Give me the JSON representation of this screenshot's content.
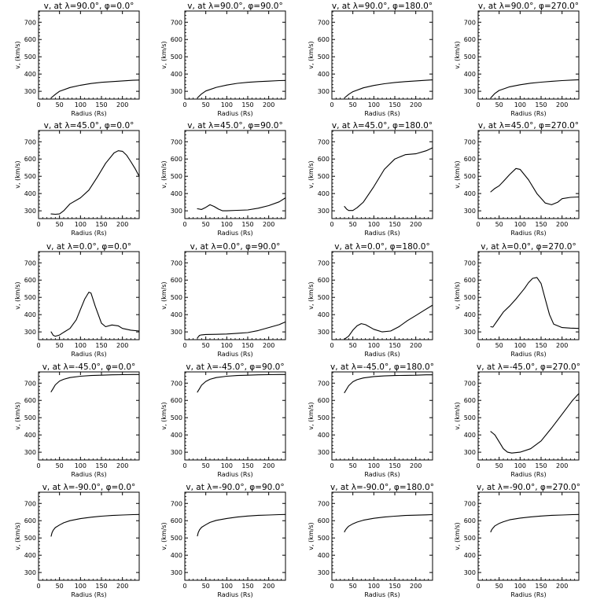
{
  "chart_data": [
    {
      "type": "line",
      "title": "v, at λ=90.0°, φ=0.0°",
      "xlabel": "Radius (Rs)",
      "ylabel": "v, (km/s)",
      "xlim": [
        0,
        240
      ],
      "ylim": [
        255,
        765
      ],
      "xticks": [
        0,
        50,
        100,
        150,
        200
      ],
      "yticks": [
        300,
        400,
        500,
        600,
        700
      ],
      "series": [
        {
          "x": [
            30,
            40,
            50,
            75,
            100,
            125,
            150,
            175,
            200,
            225,
            240
          ],
          "y": [
            262,
            282,
            300,
            322,
            335,
            345,
            352,
            356,
            360,
            364,
            365
          ]
        }
      ]
    },
    {
      "type": "line",
      "title": "v, at λ=90.0°, φ=90.0°",
      "xlabel": "Radius (Rs)",
      "ylabel": "v, (km/s)",
      "xlim": [
        0,
        240
      ],
      "ylim": [
        255,
        765
      ],
      "xticks": [
        0,
        50,
        100,
        150,
        200
      ],
      "yticks": [
        300,
        400,
        500,
        600,
        700
      ],
      "series": [
        {
          "x": [
            30,
            40,
            50,
            75,
            100,
            125,
            150,
            175,
            200,
            225,
            240
          ],
          "y": [
            262,
            285,
            302,
            323,
            336,
            346,
            352,
            356,
            359,
            362,
            363
          ]
        }
      ]
    },
    {
      "type": "line",
      "title": "v, at λ=90.0°, φ=180.0°",
      "xlabel": "Radius (Rs)",
      "ylabel": "v, (km/s)",
      "xlim": [
        0,
        240
      ],
      "ylim": [
        255,
        765
      ],
      "xticks": [
        0,
        50,
        100,
        150,
        200
      ],
      "yticks": [
        300,
        400,
        500,
        600,
        700
      ],
      "series": [
        {
          "x": [
            30,
            40,
            50,
            75,
            100,
            125,
            150,
            175,
            200,
            225,
            240
          ],
          "y": [
            262,
            282,
            298,
            320,
            334,
            344,
            351,
            356,
            360,
            364,
            366
          ]
        }
      ]
    },
    {
      "type": "line",
      "title": "v, at λ=90.0°, φ=270.0°",
      "xlabel": "Radius (Rs)",
      "ylabel": "v, (km/s)",
      "xlim": [
        0,
        240
      ],
      "ylim": [
        255,
        765
      ],
      "xticks": [
        0,
        50,
        100,
        150,
        200
      ],
      "yticks": [
        300,
        400,
        500,
        600,
        700
      ],
      "series": [
        {
          "x": [
            30,
            40,
            50,
            75,
            100,
            125,
            150,
            175,
            200,
            225,
            240
          ],
          "y": [
            262,
            288,
            305,
            326,
            338,
            347,
            353,
            358,
            362,
            365,
            367
          ]
        }
      ]
    },
    {
      "type": "line",
      "title": "v, at λ=45.0°, φ=0.0°",
      "xlabel": "Radius (Rs)",
      "ylabel": "v, (km/s)",
      "xlim": [
        0,
        240
      ],
      "ylim": [
        255,
        765
      ],
      "xticks": [
        0,
        50,
        100,
        150,
        200
      ],
      "yticks": [
        300,
        400,
        500,
        600,
        700
      ],
      "series": [
        {
          "x": [
            30,
            40,
            50,
            60,
            75,
            100,
            120,
            140,
            160,
            180,
            190,
            200,
            210,
            220,
            230,
            240
          ],
          "y": [
            282,
            280,
            282,
            300,
            340,
            375,
            420,
            495,
            575,
            635,
            648,
            645,
            622,
            585,
            545,
            500
          ]
        }
      ]
    },
    {
      "type": "line",
      "title": "v, at λ=45.0°, φ=90.0°",
      "xlabel": "Radius (Rs)",
      "ylabel": "v, (km/s)",
      "xlim": [
        0,
        240
      ],
      "ylim": [
        255,
        765
      ],
      "xticks": [
        0,
        50,
        100,
        150,
        200
      ],
      "yticks": [
        300,
        400,
        500,
        600,
        700
      ],
      "series": [
        {
          "x": [
            30,
            40,
            50,
            60,
            70,
            80,
            90,
            100,
            125,
            150,
            175,
            200,
            225,
            240
          ],
          "y": [
            312,
            308,
            320,
            335,
            325,
            310,
            300,
            300,
            303,
            305,
            315,
            330,
            352,
            375
          ]
        }
      ]
    },
    {
      "type": "line",
      "title": "v, at λ=45.0°, φ=180.0°",
      "xlabel": "Radius (Rs)",
      "ylabel": "v, (km/s)",
      "xlim": [
        0,
        240
      ],
      "ylim": [
        255,
        765
      ],
      "xticks": [
        0,
        50,
        100,
        150,
        200
      ],
      "yticks": [
        300,
        400,
        500,
        600,
        700
      ],
      "series": [
        {
          "x": [
            30,
            35,
            40,
            50,
            60,
            75,
            100,
            125,
            150,
            175,
            200,
            225,
            240
          ],
          "y": [
            325,
            310,
            302,
            302,
            318,
            350,
            440,
            540,
            600,
            625,
            630,
            648,
            665
          ]
        }
      ]
    },
    {
      "type": "line",
      "title": "v, at λ=45.0°, φ=270.0°",
      "xlabel": "Radius (Rs)",
      "ylabel": "v, (km/s)",
      "xlim": [
        0,
        240
      ],
      "ylim": [
        255,
        765
      ],
      "xticks": [
        0,
        50,
        100,
        150,
        200
      ],
      "yticks": [
        300,
        400,
        500,
        600,
        700
      ],
      "series": [
        {
          "x": [
            30,
            40,
            50,
            60,
            75,
            90,
            100,
            120,
            140,
            160,
            175,
            190,
            200,
            220,
            240
          ],
          "y": [
            410,
            430,
            445,
            470,
            510,
            545,
            540,
            480,
            400,
            345,
            335,
            350,
            370,
            378,
            380
          ]
        }
      ]
    },
    {
      "type": "line",
      "title": "v, at λ=0.0°, φ=0.0°",
      "xlabel": "Radius (Rs)",
      "ylabel": "v, (km/s)",
      "xlim": [
        0,
        240
      ],
      "ylim": [
        255,
        765
      ],
      "xticks": [
        0,
        50,
        100,
        150,
        200
      ],
      "yticks": [
        300,
        400,
        500,
        600,
        700
      ],
      "series": [
        {
          "x": [
            30,
            35,
            40,
            50,
            60,
            75,
            90,
            100,
            110,
            120,
            125,
            135,
            150,
            160,
            175,
            190,
            200,
            220,
            240
          ],
          "y": [
            300,
            280,
            275,
            282,
            298,
            320,
            370,
            430,
            490,
            530,
            525,
            450,
            350,
            330,
            340,
            335,
            320,
            310,
            305
          ]
        }
      ]
    },
    {
      "type": "line",
      "title": "v, at λ=0.0°, φ=90.0°",
      "xlabel": "Radius (Rs)",
      "ylabel": "v, (km/s)",
      "xlim": [
        0,
        240
      ],
      "ylim": [
        255,
        765
      ],
      "xticks": [
        0,
        50,
        100,
        150,
        200
      ],
      "yticks": [
        300,
        400,
        500,
        600,
        700
      ],
      "series": [
        {
          "x": [
            30,
            35,
            40,
            50,
            75,
            100,
            125,
            150,
            175,
            200,
            225,
            240
          ],
          "y": [
            265,
            280,
            283,
            285,
            286,
            288,
            292,
            296,
            308,
            325,
            342,
            358
          ]
        }
      ]
    },
    {
      "type": "line",
      "title": "v, at λ=0.0°, φ=180.0°",
      "xlabel": "Radius (Rs)",
      "ylabel": "v, (km/s)",
      "xlim": [
        0,
        240
      ],
      "ylim": [
        255,
        765
      ],
      "xticks": [
        0,
        50,
        100,
        150,
        200
      ],
      "yticks": [
        300,
        400,
        500,
        600,
        700
      ],
      "series": [
        {
          "x": [
            30,
            40,
            50,
            60,
            70,
            80,
            100,
            120,
            140,
            160,
            180,
            200,
            220,
            240
          ],
          "y": [
            258,
            275,
            310,
            335,
            348,
            342,
            315,
            300,
            305,
            330,
            365,
            395,
            425,
            455
          ]
        }
      ]
    },
    {
      "type": "line",
      "title": "v, at λ=0.0°, φ=270.0°",
      "xlabel": "Radius (Rs)",
      "ylabel": "v, (km/s)",
      "xlim": [
        0,
        240
      ],
      "ylim": [
        255,
        765
      ],
      "xticks": [
        0,
        50,
        100,
        150,
        200
      ],
      "yticks": [
        300,
        400,
        500,
        600,
        700
      ],
      "series": [
        {
          "x": [
            30,
            35,
            40,
            50,
            60,
            75,
            90,
            100,
            110,
            120,
            130,
            140,
            150,
            160,
            170,
            180,
            200,
            220,
            240
          ],
          "y": [
            330,
            328,
            345,
            380,
            415,
            450,
            490,
            520,
            550,
            585,
            610,
            615,
            580,
            490,
            400,
            345,
            325,
            322,
            320
          ]
        }
      ]
    },
    {
      "type": "line",
      "title": "v, at λ=-45.0°, φ=0.0°",
      "xlabel": "Radius (Rs)",
      "ylabel": "v, (km/s)",
      "xlim": [
        0,
        240
      ],
      "ylim": [
        255,
        765
      ],
      "xticks": [
        0,
        50,
        100,
        150,
        200
      ],
      "yticks": [
        300,
        400,
        500,
        600,
        700
      ],
      "series": [
        {
          "x": [
            30,
            35,
            40,
            50,
            60,
            75,
            100,
            125,
            150,
            175,
            200,
            225,
            240
          ],
          "y": [
            650,
            670,
            690,
            712,
            722,
            732,
            740,
            744,
            746,
            748,
            749,
            750,
            750
          ]
        }
      ]
    },
    {
      "type": "line",
      "title": "v, at λ=-45.0°, φ=90.0°",
      "xlabel": "Radius (Rs)",
      "ylabel": "v, (km/s)",
      "xlim": [
        0,
        240
      ],
      "ylim": [
        255,
        765
      ],
      "xticks": [
        0,
        50,
        100,
        150,
        200
      ],
      "yticks": [
        300,
        400,
        500,
        600,
        700
      ],
      "series": [
        {
          "x": [
            30,
            35,
            40,
            50,
            60,
            75,
            100,
            125,
            150,
            175,
            200,
            225,
            240
          ],
          "y": [
            648,
            668,
            688,
            710,
            722,
            732,
            740,
            744,
            746,
            748,
            749,
            750,
            750
          ]
        }
      ]
    },
    {
      "type": "line",
      "title": "v, at λ=-45.0°, φ=180.0°",
      "xlabel": "Radius (Rs)",
      "ylabel": "v, (km/s)",
      "xlim": [
        0,
        240
      ],
      "ylim": [
        255,
        765
      ],
      "xticks": [
        0,
        50,
        100,
        150,
        200
      ],
      "yticks": [
        300,
        400,
        500,
        600,
        700
      ],
      "series": [
        {
          "x": [
            30,
            35,
            40,
            50,
            60,
            75,
            100,
            125,
            150,
            175,
            200,
            225,
            240
          ],
          "y": [
            645,
            665,
            685,
            708,
            720,
            730,
            738,
            742,
            744,
            745,
            746,
            748,
            748
          ]
        }
      ]
    },
    {
      "type": "line",
      "title": "v, at λ=-45.0°, φ=270.0°",
      "xlabel": "Radius (Rs)",
      "ylabel": "v, (km/s)",
      "xlim": [
        0,
        240
      ],
      "ylim": [
        255,
        765
      ],
      "xticks": [
        0,
        50,
        100,
        150,
        200
      ],
      "yticks": [
        300,
        400,
        500,
        600,
        700
      ],
      "series": [
        {
          "x": [
            30,
            35,
            40,
            50,
            60,
            70,
            80,
            100,
            125,
            150,
            175,
            200,
            225,
            240
          ],
          "y": [
            420,
            410,
            400,
            360,
            320,
            300,
            295,
            300,
            320,
            365,
            440,
            520,
            600,
            640
          ]
        }
      ]
    },
    {
      "type": "line",
      "title": "v, at λ=-90.0°, φ=0.0°",
      "xlabel": "Radius (Rs)",
      "ylabel": "v, (km/s)",
      "xlim": [
        0,
        240
      ],
      "ylim": [
        255,
        765
      ],
      "xticks": [
        0,
        50,
        100,
        150,
        200
      ],
      "yticks": [
        300,
        400,
        500,
        600,
        700
      ],
      "series": [
        {
          "x": [
            30,
            32,
            35,
            40,
            50,
            60,
            75,
            100,
            125,
            150,
            175,
            200,
            225,
            240
          ],
          "y": [
            510,
            530,
            545,
            560,
            575,
            588,
            600,
            612,
            620,
            626,
            630,
            633,
            635,
            636
          ]
        }
      ]
    },
    {
      "type": "line",
      "title": "v, at λ=-90.0°, φ=90.0°",
      "xlabel": "Radius (Rs)",
      "ylabel": "v, (km/s)",
      "xlim": [
        0,
        240
      ],
      "ylim": [
        255,
        765
      ],
      "xticks": [
        0,
        50,
        100,
        150,
        200
      ],
      "yticks": [
        300,
        400,
        500,
        600,
        700
      ],
      "series": [
        {
          "x": [
            30,
            32,
            35,
            40,
            50,
            60,
            75,
            100,
            125,
            150,
            175,
            200,
            225,
            240
          ],
          "y": [
            512,
            532,
            547,
            562,
            577,
            590,
            602,
            613,
            621,
            627,
            631,
            633,
            635,
            636
          ]
        }
      ]
    },
    {
      "type": "line",
      "title": "v, at λ=-90.0°, φ=180.0°",
      "xlabel": "Radius (Rs)",
      "ylabel": "v, (km/s)",
      "xlim": [
        0,
        240
      ],
      "ylim": [
        255,
        765
      ],
      "xticks": [
        0,
        50,
        100,
        150,
        200
      ],
      "yticks": [
        300,
        400,
        500,
        600,
        700
      ],
      "series": [
        {
          "x": [
            30,
            32,
            35,
            40,
            50,
            60,
            75,
            100,
            125,
            150,
            175,
            200,
            225,
            240
          ],
          "y": [
            535,
            545,
            555,
            568,
            582,
            592,
            603,
            614,
            621,
            626,
            630,
            632,
            634,
            635
          ]
        }
      ]
    },
    {
      "type": "line",
      "title": "v, at λ=-90.0°, φ=270.0°",
      "xlabel": "Radius (Rs)",
      "ylabel": "v, (km/s)",
      "xlim": [
        0,
        240
      ],
      "ylim": [
        255,
        765
      ],
      "xticks": [
        0,
        50,
        100,
        150,
        200
      ],
      "yticks": [
        300,
        400,
        500,
        600,
        700
      ],
      "series": [
        {
          "x": [
            30,
            32,
            35,
            40,
            50,
            60,
            75,
            100,
            125,
            150,
            175,
            200,
            225,
            240
          ],
          "y": [
            535,
            547,
            557,
            570,
            584,
            594,
            605,
            615,
            622,
            627,
            631,
            633,
            635,
            636
          ]
        }
      ]
    }
  ]
}
